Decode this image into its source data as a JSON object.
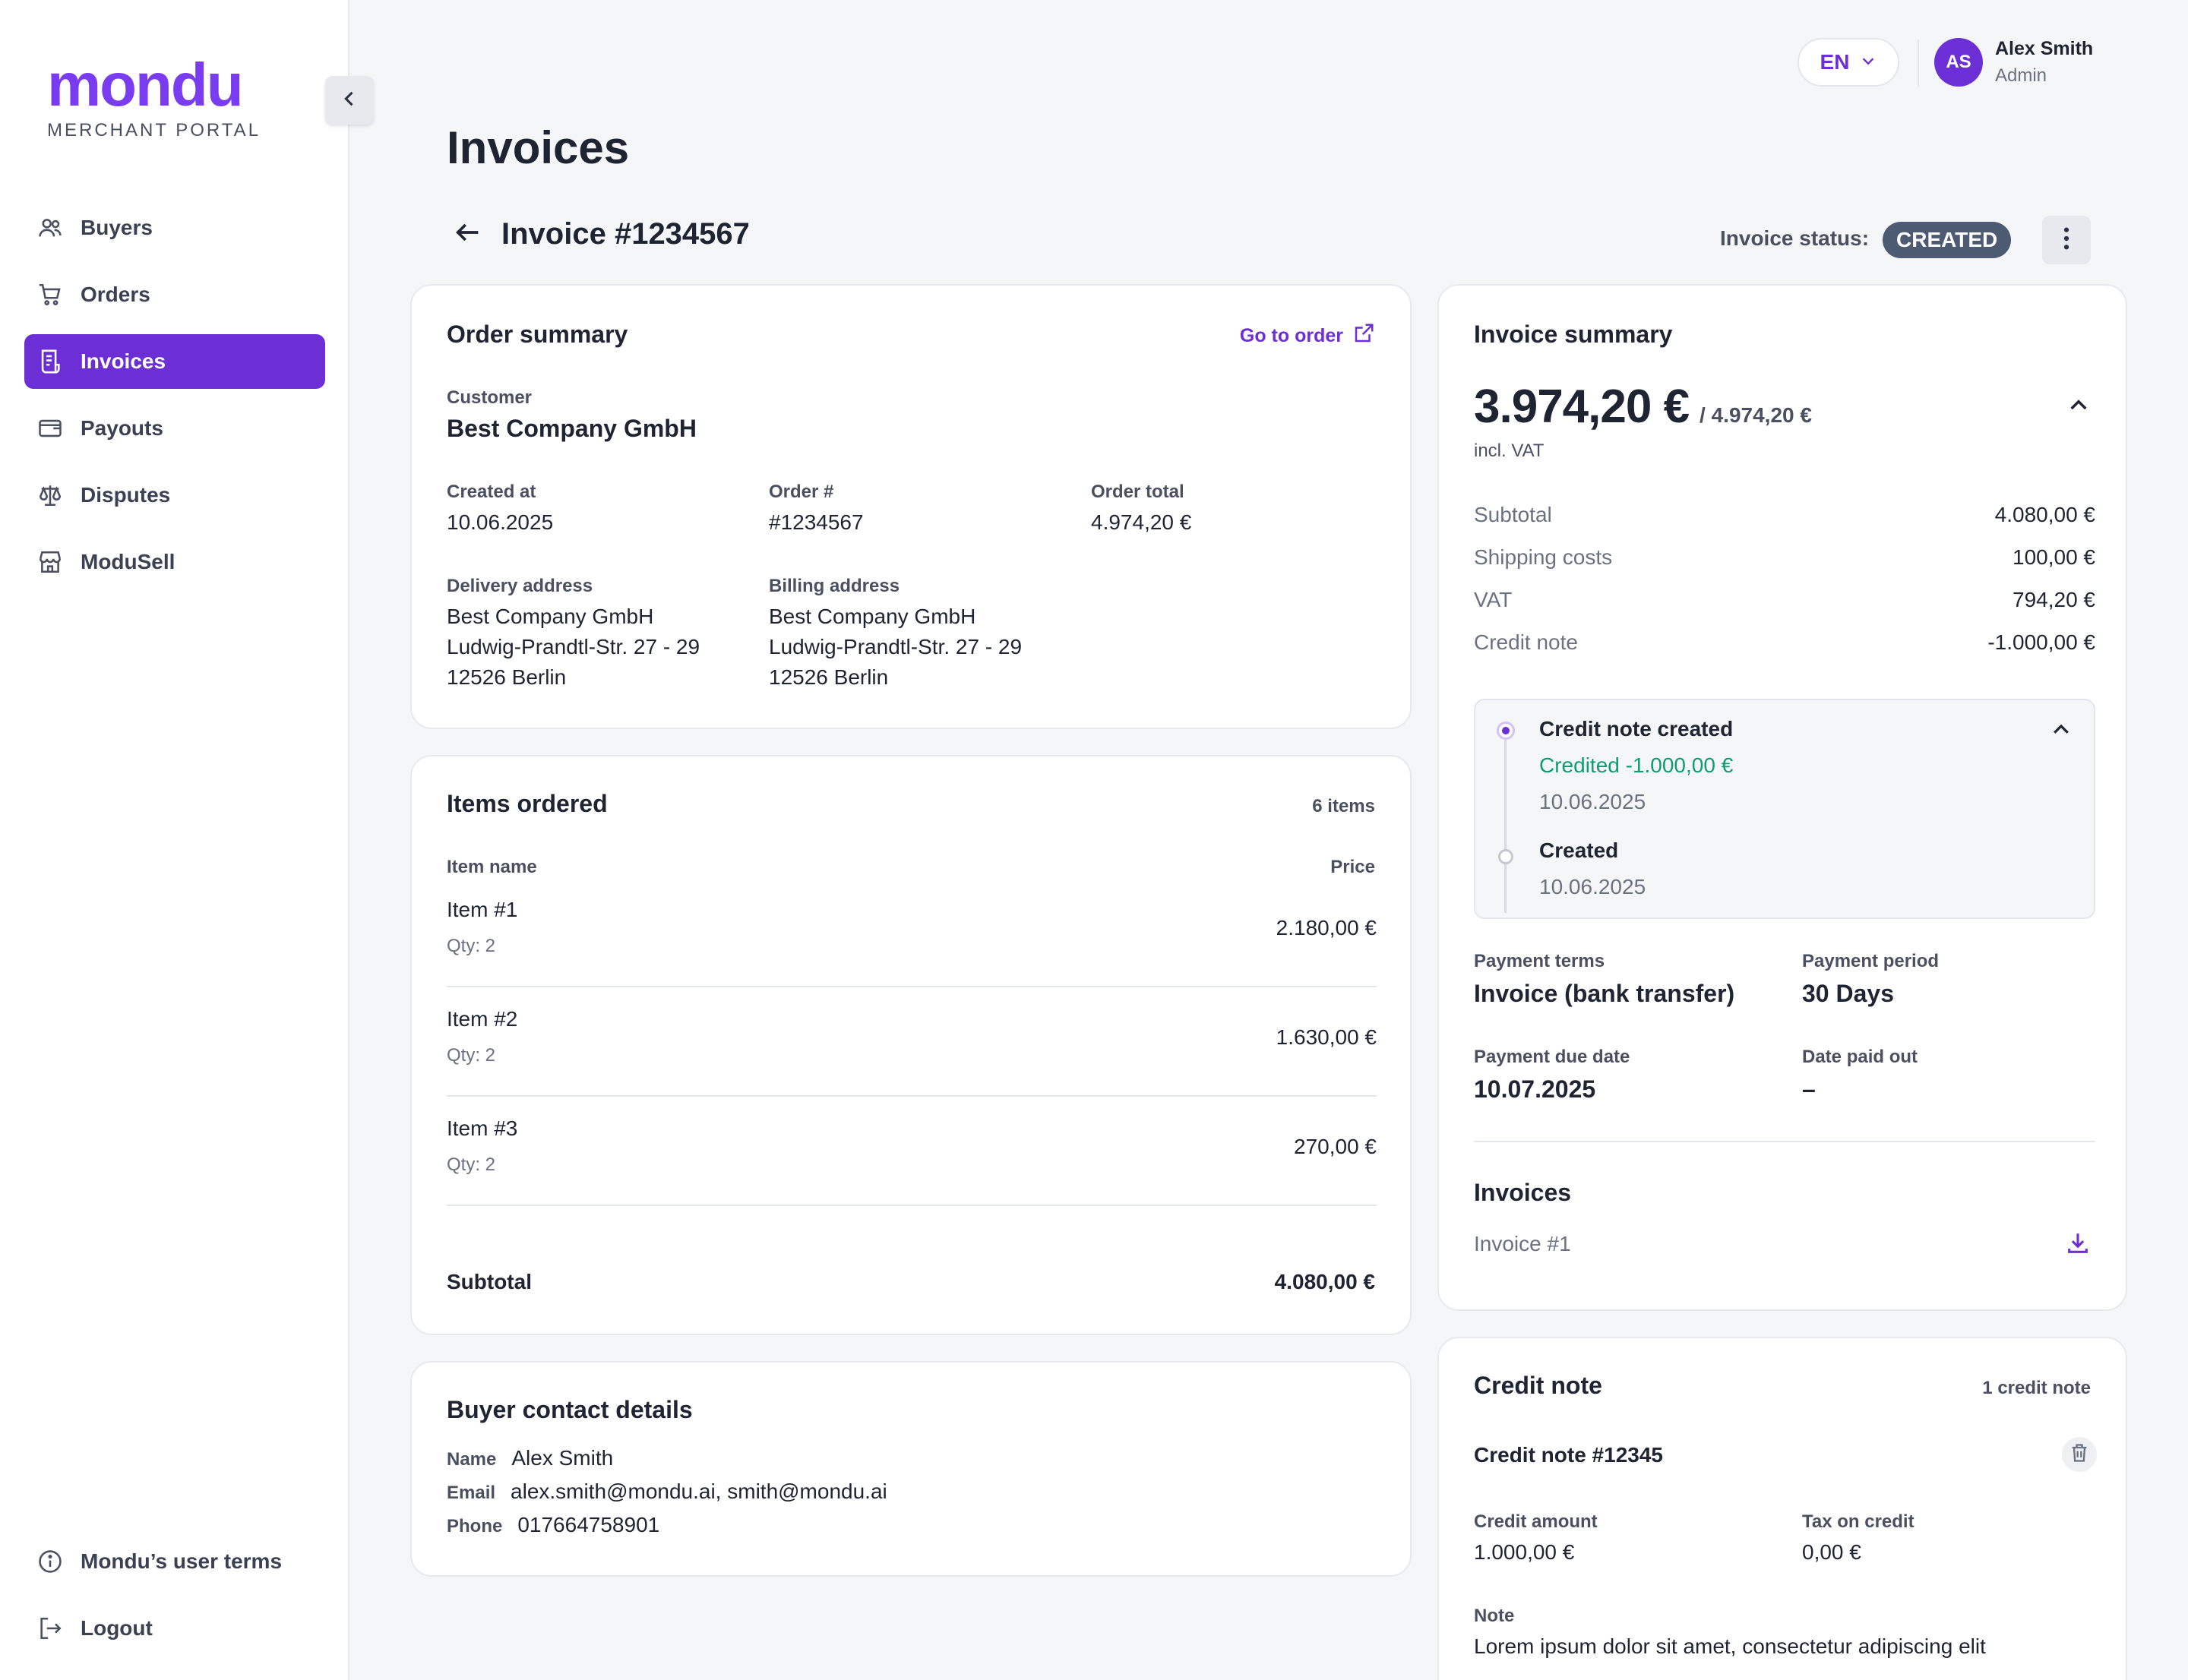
{
  "sidebar": {
    "logo_word": "mondu",
    "logo_sub": "MERCHANT PORTAL",
    "items": [
      {
        "label": "Buyers",
        "icon": "users-icon"
      },
      {
        "label": "Orders",
        "icon": "cart-icon"
      },
      {
        "label": "Invoices",
        "icon": "invoice-icon",
        "active": true
      },
      {
        "label": "Payouts",
        "icon": "wallet-icon"
      },
      {
        "label": "Disputes",
        "icon": "scale-icon"
      },
      {
        "label": "ModuSell",
        "icon": "store-icon"
      }
    ],
    "bottom": [
      {
        "label": "Mondu’s user terms",
        "icon": "info-icon"
      },
      {
        "label": "Logout",
        "icon": "logout-icon"
      }
    ]
  },
  "header": {
    "language": "EN",
    "user_initials": "AS",
    "user_name": "Alex Smith",
    "user_role": "Admin",
    "page_title": "Invoices",
    "invoice_title": "Invoice #1234567",
    "status_label": "Invoice status:",
    "status_value": "CREATED"
  },
  "order_summary": {
    "title": "Order summary",
    "link": "Go to order",
    "customer_label": "Customer",
    "customer": "Best Company GmbH",
    "created_label": "Created at",
    "created": "10.06.2025",
    "order_no_label": "Order #",
    "order_no": "#1234567",
    "total_label": "Order total",
    "total": "4.974,20 €",
    "delivery_label": "Delivery address",
    "delivery": [
      "Best Company GmbH",
      "Ludwig-Prandtl-Str. 27 - 29",
      "12526 Berlin"
    ],
    "billing_label": "Billing address",
    "billing": [
      "Best Company GmbH",
      "Ludwig-Prandtl-Str. 27 - 29",
      "12526 Berlin"
    ]
  },
  "items": {
    "title": "Items ordered",
    "count": "6 items",
    "col_name": "Item name",
    "col_price": "Price",
    "rows": [
      {
        "name": "Item #1",
        "qty": "Qty: 2",
        "price": "2.180,00 €"
      },
      {
        "name": "Item #2",
        "qty": "Qty: 2",
        "price": "1.630,00 €"
      },
      {
        "name": "Item #3",
        "qty": "Qty: 2",
        "price": "270,00 €"
      }
    ],
    "subtotal_label": "Subtotal",
    "subtotal": "4.080,00 €"
  },
  "contact": {
    "title": "Buyer contact details",
    "name_label": "Name",
    "name": "Alex Smith",
    "email_label": "Email",
    "email": "alex.smith@mondu.ai, smith@mondu.ai",
    "phone_label": "Phone",
    "phone": "017664758901"
  },
  "invoice_summary": {
    "title": "Invoice summary",
    "amount": "3.974,20 €",
    "amount_total": "/ 4.974,20 €",
    "vat_note": "incl. VAT",
    "lines": [
      {
        "label": "Subtotal",
        "value": "4.080,00 €"
      },
      {
        "label": "Shipping costs",
        "value": "100,00 €"
      },
      {
        "label": "VAT",
        "value": "794,20 €"
      },
      {
        "label": "Credit note",
        "value": "-1.000,00 €"
      }
    ],
    "timeline": {
      "event1_title": "Credit note created",
      "event1_amount": "Credited -1.000,00 €",
      "event1_date": "10.06.2025",
      "event2_title": "Created",
      "event2_date": "10.06.2025",
      "credit_color": "#0f9d6e"
    },
    "terms_label": "Payment terms",
    "terms": "Invoice (bank transfer)",
    "period_label": "Payment period",
    "period": "30 Days",
    "due_label": "Payment due date",
    "due": "10.07.2025",
    "paid_label": "Date paid out",
    "paid": "–",
    "invoices_title": "Invoices",
    "invoice_file": "Invoice #1"
  },
  "credit_note": {
    "title": "Credit note",
    "count": "1 credit note",
    "number": "Credit note #12345",
    "amount_label": "Credit amount",
    "amount": "1.000,00 €",
    "tax_label": "Tax on credit",
    "tax": "0,00 €",
    "note_label": "Note",
    "note": "Lorem ipsum dolor sit amet, consectetur adipiscing elit"
  },
  "colors": {
    "accent": "#6c2fd6",
    "badge": "#4c5b72",
    "credit_green": "#0f9d6e"
  }
}
